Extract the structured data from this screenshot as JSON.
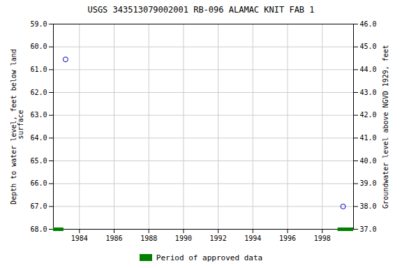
{
  "chart_data": {
    "type": "scatter",
    "title": "USGS 343513079002001 RB-096 ALAMAC KNIT FAB 1",
    "x": [
      1983.2,
      1999.2
    ],
    "values": [
      60.55,
      67.0
    ],
    "color": "#0000bb",
    "marker": "open_circle",
    "ylabel": "Depth to water level, feet below land\n surface",
    "y2label": "Groundwater level above NGVD 1929, feet",
    "xlim": [
      1982.5,
      1999.8
    ],
    "xticks": [
      1984,
      1986,
      1988,
      1990,
      1992,
      1994,
      1996,
      1998
    ],
    "ylim": [
      68.0,
      59.0
    ],
    "yticks": [
      {
        "value": 59.0,
        "label": "59.0"
      },
      {
        "value": 60.0,
        "label": "60.0"
      },
      {
        "value": 61.0,
        "label": "61.0"
      },
      {
        "value": 62.0,
        "label": "62.0"
      },
      {
        "value": 63.0,
        "label": "63.0"
      },
      {
        "value": 64.0,
        "label": "64.0"
      },
      {
        "value": 65.0,
        "label": "65.0"
      },
      {
        "value": 66.0,
        "label": "66.0"
      },
      {
        "value": 67.0,
        "label": "67.0"
      },
      {
        "value": 68.0,
        "label": "68.0"
      }
    ],
    "y2lim": [
      37.0,
      46.0
    ],
    "y2ticks": [
      {
        "value": 46.0,
        "label": "46.0"
      },
      {
        "value": 45.0,
        "label": "45.0"
      },
      {
        "value": 44.0,
        "label": "44.0"
      },
      {
        "value": 43.0,
        "label": "43.0"
      },
      {
        "value": 42.0,
        "label": "42.0"
      },
      {
        "value": 41.0,
        "label": "41.0"
      },
      {
        "value": 40.0,
        "label": "40.0"
      },
      {
        "value": 39.0,
        "label": "39.0"
      },
      {
        "value": 38.0,
        "label": "38.0"
      },
      {
        "value": 37.0,
        "label": "37.0"
      }
    ],
    "grid": true,
    "legend": "bottom",
    "periods": {
      "name": "Period of approved data",
      "color": "#008000",
      "x": [
        [
          1982.5,
          1983.1
        ],
        [
          1998.9,
          1999.8
        ]
      ],
      "y": 68.0
    }
  }
}
